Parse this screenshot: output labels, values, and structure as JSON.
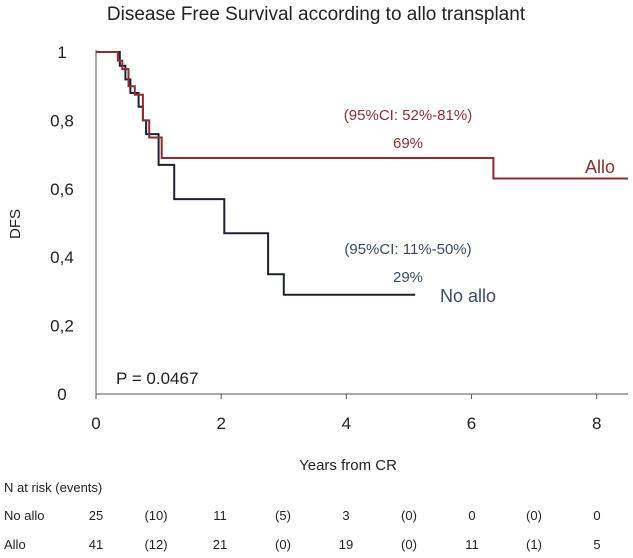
{
  "chart_data": {
    "type": "line",
    "subtype": "kaplan-meier",
    "title": "Disease Free Survival according to allo transplant",
    "xlabel": "Years from CR",
    "ylabel": "DFS",
    "xlim": [
      0,
      8.5
    ],
    "ylim": [
      0,
      1
    ],
    "xticks": [
      0,
      2,
      4,
      6,
      8
    ],
    "yticks": [
      {
        "value": 0,
        "label": "0"
      },
      {
        "value": 0.2,
        "label": "0,2"
      },
      {
        "value": 0.4,
        "label": "0,4"
      },
      {
        "value": 0.6,
        "label": "0,6"
      },
      {
        "value": 0.8,
        "label": "0,8"
      },
      {
        "value": 1,
        "label": "1"
      }
    ],
    "series": [
      {
        "name": "Allo",
        "color": "#8a2f33",
        "steps": [
          [
            0,
            1
          ],
          [
            0.35,
            1
          ],
          [
            0.35,
            0.975
          ],
          [
            0.42,
            0.95
          ],
          [
            0.52,
            0.9
          ],
          [
            0.62,
            0.875
          ],
          [
            0.75,
            0.8
          ],
          [
            0.85,
            0.75
          ],
          [
            1.05,
            0.69
          ],
          [
            6.35,
            0.69
          ],
          [
            6.35,
            0.63
          ],
          [
            8.5,
            0.63
          ]
        ],
        "annotation_ci": "(95%CI: 52%-81%)",
        "annotation_pct": "69%"
      },
      {
        "name": "No allo",
        "color": "#1c2233",
        "steps": [
          [
            0,
            1
          ],
          [
            0.38,
            1
          ],
          [
            0.38,
            0.96
          ],
          [
            0.47,
            0.92
          ],
          [
            0.55,
            0.88
          ],
          [
            0.68,
            0.84
          ],
          [
            0.75,
            0.8
          ],
          [
            0.8,
            0.76
          ],
          [
            1.0,
            0.76
          ],
          [
            1.0,
            0.67
          ],
          [
            1.25,
            0.67
          ],
          [
            1.25,
            0.57
          ],
          [
            2.05,
            0.57
          ],
          [
            2.05,
            0.47
          ],
          [
            2.75,
            0.47
          ],
          [
            2.75,
            0.35
          ],
          [
            3.0,
            0.35
          ],
          [
            3.0,
            0.29
          ],
          [
            5.1,
            0.29
          ]
        ],
        "annotation_ci": "(95%CI: 11%-50%)",
        "annotation_pct": "29%"
      }
    ],
    "p_value": "P = 0.0467",
    "risk_table": {
      "header": "N at risk (events)",
      "rows": [
        {
          "label": "No allo",
          "values": [
            "25",
            "(10)",
            "11",
            "(5)",
            "3",
            "(0)",
            "0",
            "(0)",
            "0"
          ]
        },
        {
          "label": "Allo",
          "values": [
            "41",
            "(12)",
            "21",
            "(0)",
            "19",
            "(0)",
            "11",
            "(1)",
            "5"
          ]
        }
      ]
    }
  }
}
